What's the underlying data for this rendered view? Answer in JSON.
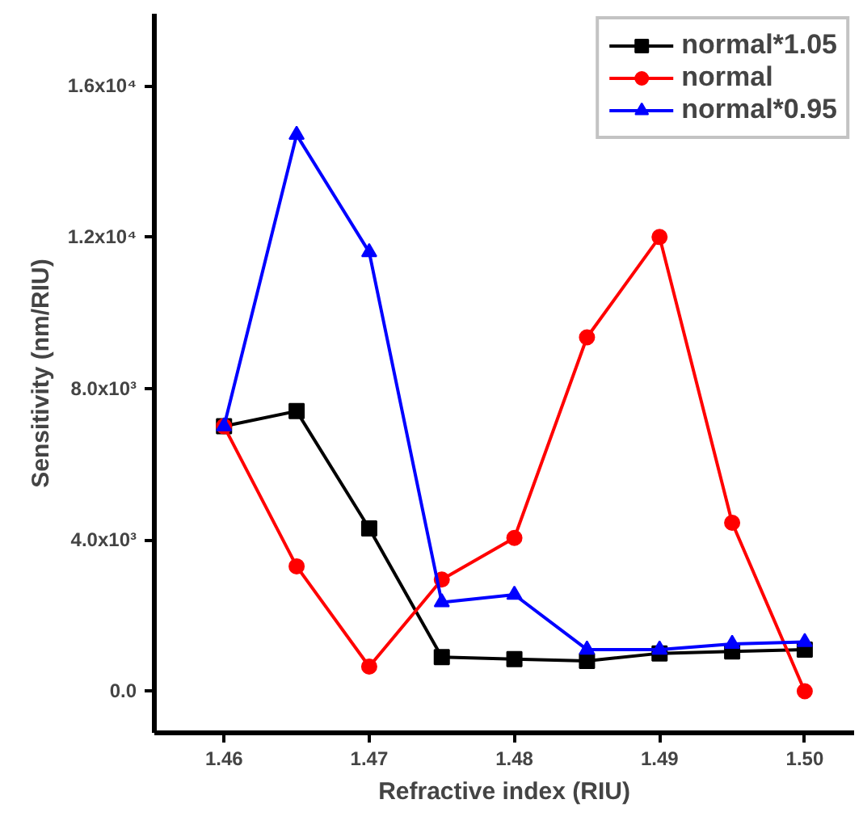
{
  "chart_data": {
    "type": "line",
    "xlabel": "Refractive index (RIU)",
    "ylabel": "Sensitivity (nm/RIU)",
    "x": [
      1.46,
      1.465,
      1.47,
      1.475,
      1.48,
      1.485,
      1.49,
      1.495,
      1.5
    ],
    "series": [
      {
        "name": "normal*1.05",
        "color": "#000000",
        "marker": "square",
        "values": [
          7000,
          7400,
          4300,
          900,
          850,
          800,
          1000,
          1050,
          1100
        ]
      },
      {
        "name": "normal",
        "color": "#ff0000",
        "marker": "circle",
        "values": [
          7000,
          3300,
          650,
          2950,
          4050,
          9350,
          12000,
          4450,
          0
        ]
      },
      {
        "name": "normal*0.95",
        "color": "#0000ff",
        "marker": "triangle",
        "values": [
          7000,
          14700,
          11600,
          2350,
          2550,
          1100,
          1100,
          1250,
          1300
        ]
      }
    ],
    "xlim": [
      1.4552,
      1.5034
    ],
    "ylim": [
      -1100,
      17900
    ],
    "xticks": [
      1.46,
      1.47,
      1.48,
      1.49,
      {
        "value": 1.5,
        "label": "1.50"
      }
    ],
    "yticks": [
      {
        "value": 0,
        "label": "0.0"
      },
      {
        "value": 4000,
        "label": "4.0x10³"
      },
      {
        "value": 8000,
        "label": "8.0x10³"
      },
      {
        "value": 12000,
        "label": "1.2x10⁴"
      },
      {
        "value": 16000,
        "label": "1.6x10⁴"
      }
    ],
    "legend": "top right",
    "grid": false,
    "line_style": "solid"
  }
}
